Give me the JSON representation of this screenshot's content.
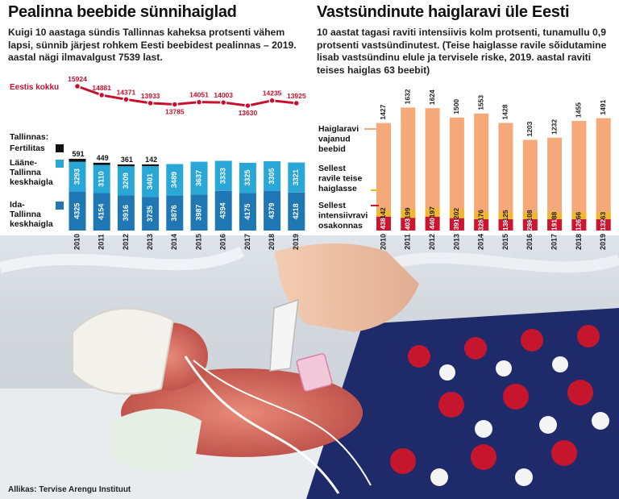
{
  "left": {
    "title": "Pealinna beebide sünnihaiglad",
    "description": "Kuigi 10 aastaga sündis Tallinnas kaheksa protsenti vähem lapsi, sünnib järjest rohkem Eesti beebidest pealinnas – 2019. aastal nägi ilmavalgust 7539 last."
  },
  "right": {
    "title": "Vastsündinute haiglaravi üle Eesti",
    "description": "10 aastat tagasi raviti intensiivis kolm protsenti, tunamullu 0,9 protsenti vastsündinutest. (Teise haiglasse ravile sõidutamine lisab vastsündinu elule ja tervisele riske, 2019. aastal raviti teises haiglas 63 beebit)"
  },
  "source": "Allikas: Tervise Arengu Instituut",
  "colors": {
    "red": "#c8102e",
    "dark_blue": "#1f78b4",
    "light_blue": "#29a7d6",
    "black": "#111111",
    "orange": "#f5a878",
    "yellow": "#f2b632",
    "deep_red": "#cc1530"
  },
  "chart_data": [
    {
      "type": "bar",
      "stacked": true,
      "categories": [
        "2010",
        "2011",
        "2012",
        "2013",
        "2014",
        "2015",
        "2016",
        "2017",
        "2018",
        "2019"
      ],
      "series_group_label": "Tallinnas:",
      "series": [
        {
          "name": "Ida-Tallinna keskhaigla",
          "color": "#1f78b4",
          "values": [
            4325,
            4154,
            3916,
            3735,
            3876,
            3987,
            4394,
            4175,
            4379,
            4218
          ]
        },
        {
          "name": "Lääne-Tallinna keskhaigla",
          "color": "#29a7d6",
          "values": [
            3293,
            3110,
            3209,
            3401,
            3489,
            3637,
            3333,
            3325,
            3305,
            3321
          ]
        },
        {
          "name": "Fertilitas",
          "color": "#111111",
          "values": [
            591,
            449,
            361,
            142,
            null,
            null,
            null,
            null,
            null,
            null
          ]
        }
      ],
      "line": {
        "name": "Eestis kokku",
        "color": "#c8102e",
        "values": [
          15924,
          14881,
          14371,
          13933,
          13785,
          14051,
          14003,
          13630,
          14235,
          13925
        ]
      }
    },
    {
      "type": "bar",
      "stacked": true,
      "categories": [
        "2010",
        "2011",
        "2012",
        "2013",
        "2014",
        "2015",
        "2016",
        "2017",
        "2018",
        "2019"
      ],
      "series": [
        {
          "name": "Sellest intensiivravi osakonnas",
          "color": "#cc1530",
          "values": [
            438,
            403,
            440,
            391,
            328,
            138,
            298,
            191,
            126,
            132
          ]
        },
        {
          "name": "Sellest ravile teise haiglasse",
          "color": "#f2b632",
          "values": [
            142,
            199,
            197,
            202,
            176,
            125,
            108,
            88,
            66,
            63
          ]
        },
        {
          "name": "Haiglaravi vajanud beebid",
          "color": "#f5a878",
          "values": [
            1427,
            1632,
            1624,
            1500,
            1553,
            1428,
            1203,
            1232,
            1455,
            1491
          ]
        }
      ]
    }
  ]
}
